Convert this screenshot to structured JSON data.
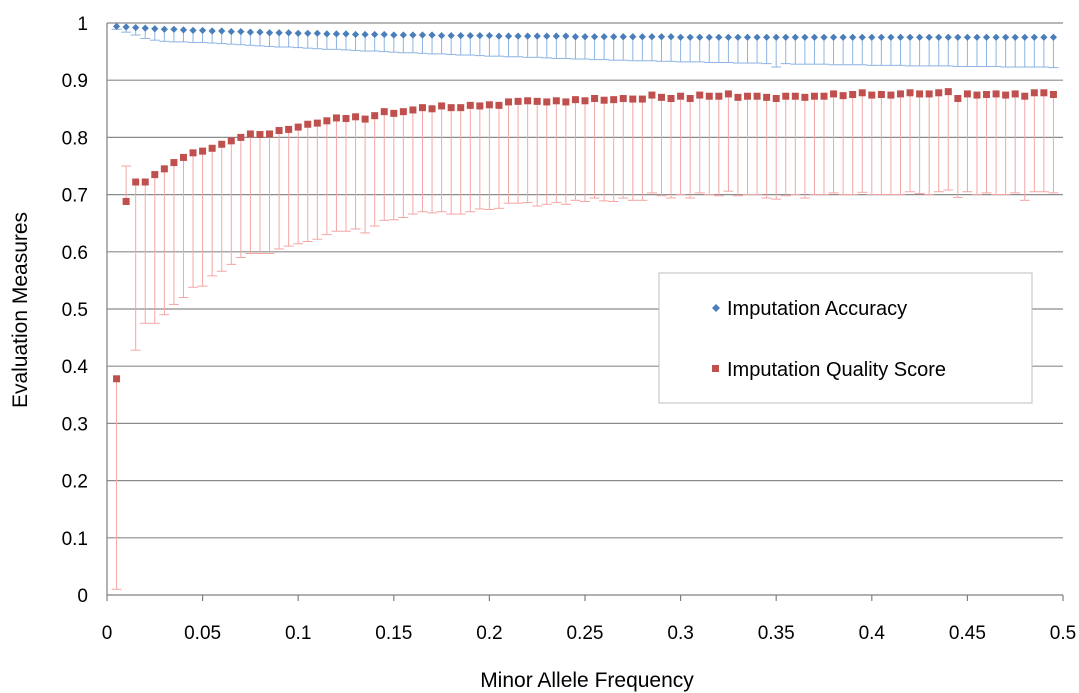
{
  "chart_data": {
    "type": "scatter",
    "title": "",
    "xlabel": "Minor Allele Frequency",
    "ylabel": "Evaluation Measures",
    "xlim": [
      0,
      0.5
    ],
    "ylim": [
      0,
      1
    ],
    "x_ticks": [
      "0",
      "0.05",
      "0.1",
      "0.15",
      "0.2",
      "0.25",
      "0.3",
      "0.35",
      "0.4",
      "0.45",
      "0.5"
    ],
    "y_ticks": [
      "0",
      "0.1",
      "0.2",
      "0.3",
      "0.4",
      "0.5",
      "0.6",
      "0.7",
      "0.8",
      "0.9",
      "1"
    ],
    "grid": "horizontal",
    "legend_position": "right",
    "error_bars": true,
    "x": [
      0.005,
      0.01,
      0.015,
      0.02,
      0.025,
      0.03,
      0.035,
      0.04,
      0.045,
      0.05,
      0.055,
      0.06,
      0.065,
      0.07,
      0.075,
      0.08,
      0.085,
      0.09,
      0.095,
      0.1,
      0.105,
      0.11,
      0.115,
      0.12,
      0.125,
      0.13,
      0.135,
      0.14,
      0.145,
      0.15,
      0.155,
      0.16,
      0.165,
      0.17,
      0.175,
      0.18,
      0.185,
      0.19,
      0.195,
      0.2,
      0.205,
      0.21,
      0.215,
      0.22,
      0.225,
      0.23,
      0.235,
      0.24,
      0.245,
      0.25,
      0.255,
      0.26,
      0.265,
      0.27,
      0.275,
      0.28,
      0.285,
      0.29,
      0.295,
      0.3,
      0.305,
      0.31,
      0.315,
      0.32,
      0.325,
      0.33,
      0.335,
      0.34,
      0.345,
      0.35,
      0.355,
      0.36,
      0.365,
      0.37,
      0.375,
      0.38,
      0.385,
      0.39,
      0.395,
      0.4,
      0.405,
      0.41,
      0.415,
      0.42,
      0.425,
      0.43,
      0.435,
      0.44,
      0.445,
      0.45,
      0.455,
      0.46,
      0.465,
      0.47,
      0.475,
      0.48,
      0.485,
      0.49,
      0.495
    ],
    "series": [
      {
        "name": "Imputation Accuracy",
        "color": "#4a7ebb",
        "marker": "diamond",
        "values": [
          0.994,
          0.993,
          0.992,
          0.991,
          0.99,
          0.989,
          0.989,
          0.988,
          0.987,
          0.987,
          0.986,
          0.986,
          0.985,
          0.985,
          0.984,
          0.984,
          0.983,
          0.983,
          0.983,
          0.982,
          0.982,
          0.982,
          0.981,
          0.981,
          0.981,
          0.98,
          0.98,
          0.98,
          0.98,
          0.979,
          0.979,
          0.979,
          0.979,
          0.979,
          0.978,
          0.978,
          0.978,
          0.978,
          0.978,
          0.978,
          0.977,
          0.977,
          0.977,
          0.977,
          0.977,
          0.977,
          0.977,
          0.977,
          0.976,
          0.976,
          0.976,
          0.976,
          0.976,
          0.976,
          0.976,
          0.976,
          0.976,
          0.976,
          0.976,
          0.975,
          0.975,
          0.975,
          0.975,
          0.975,
          0.975,
          0.975,
          0.975,
          0.975,
          0.975,
          0.975,
          0.975,
          0.975,
          0.975,
          0.975,
          0.975,
          0.975,
          0.975,
          0.975,
          0.975,
          0.975,
          0.975,
          0.975,
          0.975,
          0.975,
          0.975,
          0.975,
          0.975,
          0.975,
          0.975,
          0.975,
          0.975,
          0.975,
          0.975,
          0.975,
          0.975,
          0.975,
          0.975,
          0.975,
          0.975
        ],
        "error_low": [
          0.989,
          0.984,
          0.979,
          0.973,
          0.97,
          0.968,
          0.967,
          0.967,
          0.966,
          0.966,
          0.965,
          0.964,
          0.963,
          0.962,
          0.961,
          0.96,
          0.959,
          0.958,
          0.958,
          0.957,
          0.956,
          0.955,
          0.954,
          0.954,
          0.953,
          0.952,
          0.951,
          0.951,
          0.95,
          0.949,
          0.948,
          0.948,
          0.947,
          0.946,
          0.946,
          0.945,
          0.944,
          0.944,
          0.943,
          0.942,
          0.942,
          0.941,
          0.941,
          0.94,
          0.94,
          0.939,
          0.938,
          0.938,
          0.937,
          0.937,
          0.936,
          0.936,
          0.935,
          0.935,
          0.934,
          0.934,
          0.934,
          0.933,
          0.933,
          0.932,
          0.932,
          0.932,
          0.931,
          0.931,
          0.931,
          0.93,
          0.93,
          0.93,
          0.929,
          0.923,
          0.929,
          0.928,
          0.928,
          0.928,
          0.928,
          0.927,
          0.927,
          0.927,
          0.927,
          0.926,
          0.926,
          0.926,
          0.926,
          0.925,
          0.925,
          0.925,
          0.925,
          0.925,
          0.924,
          0.924,
          0.924,
          0.924,
          0.924,
          0.923,
          0.923,
          0.923,
          0.923,
          0.923,
          0.922
        ]
      },
      {
        "name": "Imputation Quality Score",
        "color": "#c0504d",
        "marker": "square",
        "values": [
          0.378,
          0.688,
          0.722,
          0.722,
          0.735,
          0.745,
          0.756,
          0.765,
          0.773,
          0.776,
          0.781,
          0.788,
          0.794,
          0.8,
          0.806,
          0.805,
          0.806,
          0.812,
          0.814,
          0.818,
          0.823,
          0.825,
          0.829,
          0.834,
          0.833,
          0.836,
          0.832,
          0.838,
          0.845,
          0.842,
          0.845,
          0.848,
          0.852,
          0.85,
          0.855,
          0.852,
          0.852,
          0.856,
          0.855,
          0.857,
          0.856,
          0.862,
          0.863,
          0.864,
          0.863,
          0.862,
          0.864,
          0.862,
          0.866,
          0.864,
          0.868,
          0.865,
          0.866,
          0.868,
          0.867,
          0.867,
          0.874,
          0.87,
          0.868,
          0.872,
          0.868,
          0.874,
          0.872,
          0.872,
          0.876,
          0.87,
          0.872,
          0.872,
          0.87,
          0.868,
          0.872,
          0.872,
          0.87,
          0.872,
          0.872,
          0.876,
          0.873,
          0.875,
          0.878,
          0.874,
          0.875,
          0.874,
          0.876,
          0.878,
          0.876,
          0.876,
          0.878,
          0.88,
          0.868,
          0.876,
          0.874,
          0.875,
          0.876,
          0.874,
          0.876,
          0.872,
          0.878,
          0.878,
          0.875
        ],
        "error_low": [
          0.01,
          0.75,
          0.428,
          0.475,
          0.475,
          0.49,
          0.508,
          0.52,
          0.538,
          0.54,
          0.558,
          0.566,
          0.578,
          0.59,
          0.597,
          0.597,
          0.597,
          0.605,
          0.61,
          0.614,
          0.618,
          0.622,
          0.63,
          0.636,
          0.636,
          0.64,
          0.633,
          0.645,
          0.655,
          0.656,
          0.66,
          0.666,
          0.67,
          0.668,
          0.67,
          0.666,
          0.666,
          0.67,
          0.675,
          0.674,
          0.676,
          0.685,
          0.685,
          0.686,
          0.68,
          0.683,
          0.686,
          0.683,
          0.69,
          0.688,
          0.694,
          0.689,
          0.688,
          0.694,
          0.69,
          0.69,
          0.703,
          0.698,
          0.694,
          0.7,
          0.694,
          0.703,
          0.7,
          0.698,
          0.706,
          0.698,
          0.7,
          0.7,
          0.694,
          0.692,
          0.698,
          0.7,
          0.694,
          0.7,
          0.7,
          0.703,
          0.7,
          0.7,
          0.704,
          0.7,
          0.7,
          0.7,
          0.7,
          0.705,
          0.702,
          0.7,
          0.705,
          0.708,
          0.695,
          0.705,
          0.7,
          0.703,
          0.7,
          0.7,
          0.703,
          0.69,
          0.705,
          0.705,
          0.703
        ]
      }
    ]
  }
}
